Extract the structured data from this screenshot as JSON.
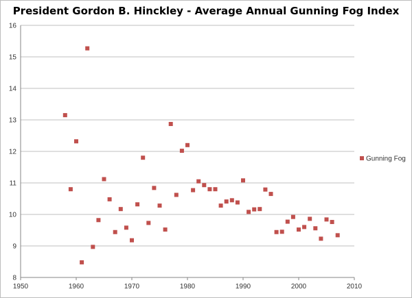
{
  "chart_data": {
    "type": "scatter",
    "title": "President Gordon B. Hinckley - Average Annual Gunning Fog Index",
    "xlabel": "",
    "ylabel": "",
    "xlim": [
      1950,
      2010
    ],
    "ylim": [
      8,
      16
    ],
    "xticks": [
      1950,
      1960,
      1970,
      1980,
      1990,
      2000,
      2010
    ],
    "yticks": [
      8,
      9,
      10,
      11,
      12,
      13,
      14,
      15,
      16
    ],
    "grid": true,
    "legend_position": "right",
    "series": [
      {
        "name": "Gunning Fog",
        "color": "#c0504d",
        "marker": "square",
        "points": [
          {
            "x": 1958,
            "y": 13.15
          },
          {
            "x": 1959,
            "y": 10.8
          },
          {
            "x": 1960,
            "y": 12.32
          },
          {
            "x": 1961,
            "y": 8.48
          },
          {
            "x": 1962,
            "y": 15.27
          },
          {
            "x": 1963,
            "y": 8.97
          },
          {
            "x": 1964,
            "y": 9.82
          },
          {
            "x": 1965,
            "y": 11.12
          },
          {
            "x": 1966,
            "y": 10.48
          },
          {
            "x": 1967,
            "y": 9.44
          },
          {
            "x": 1968,
            "y": 10.17
          },
          {
            "x": 1969,
            "y": 9.58
          },
          {
            "x": 1970,
            "y": 9.18
          },
          {
            "x": 1971,
            "y": 10.32
          },
          {
            "x": 1972,
            "y": 11.8
          },
          {
            "x": 1973,
            "y": 9.73
          },
          {
            "x": 1974,
            "y": 10.84
          },
          {
            "x": 1975,
            "y": 10.28
          },
          {
            "x": 1976,
            "y": 9.52
          },
          {
            "x": 1977,
            "y": 12.87
          },
          {
            "x": 1978,
            "y": 10.62
          },
          {
            "x": 1979,
            "y": 12.02
          },
          {
            "x": 1980,
            "y": 12.2
          },
          {
            "x": 1981,
            "y": 10.77
          },
          {
            "x": 1982,
            "y": 11.05
          },
          {
            "x": 1983,
            "y": 10.93
          },
          {
            "x": 1984,
            "y": 10.8
          },
          {
            "x": 1985,
            "y": 10.8
          },
          {
            "x": 1986,
            "y": 10.28
          },
          {
            "x": 1987,
            "y": 10.41
          },
          {
            "x": 1988,
            "y": 10.45
          },
          {
            "x": 1989,
            "y": 10.38
          },
          {
            "x": 1990,
            "y": 11.08
          },
          {
            "x": 1991,
            "y": 10.08
          },
          {
            "x": 1992,
            "y": 10.16
          },
          {
            "x": 1993,
            "y": 10.17
          },
          {
            "x": 1994,
            "y": 10.79
          },
          {
            "x": 1995,
            "y": 10.65
          },
          {
            "x": 1996,
            "y": 9.44
          },
          {
            "x": 1997,
            "y": 9.45
          },
          {
            "x": 1998,
            "y": 9.77
          },
          {
            "x": 1999,
            "y": 9.92
          },
          {
            "x": 2000,
            "y": 9.52
          },
          {
            "x": 2001,
            "y": 9.6
          },
          {
            "x": 2002,
            "y": 9.86
          },
          {
            "x": 2003,
            "y": 9.56
          },
          {
            "x": 2004,
            "y": 9.23
          },
          {
            "x": 2005,
            "y": 9.84
          },
          {
            "x": 2006,
            "y": 9.76
          },
          {
            "x": 2007,
            "y": 9.34
          }
        ]
      }
    ]
  }
}
